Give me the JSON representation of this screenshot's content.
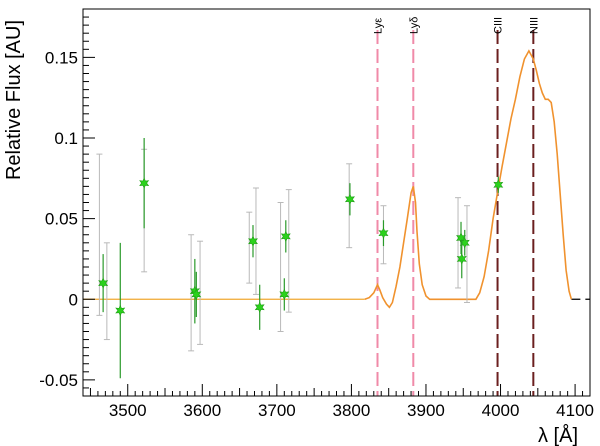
{
  "chart_data": {
    "type": "scatter",
    "title": "",
    "xlabel": "λ [Å]",
    "ylabel": "Relative Flux [AU]",
    "xlim": [
      3440,
      4120
    ],
    "ylim": [
      -0.06,
      0.18
    ],
    "grid": false,
    "xticks": [
      {
        "value": 3500,
        "label": "3500"
      },
      {
        "value": 3600,
        "label": "3600"
      },
      {
        "value": 3700,
        "label": "3700"
      },
      {
        "value": 3800,
        "label": "3800"
      },
      {
        "value": 3900,
        "label": "3900"
      },
      {
        "value": 4000,
        "label": "4000"
      },
      {
        "value": 4100,
        "label": "4100"
      }
    ],
    "yticks": [
      {
        "value": -0.05,
        "label": "-0.05"
      },
      {
        "value": 0,
        "label": "0"
      },
      {
        "value": 0.05,
        "label": "0.05"
      },
      {
        "value": 0.1,
        "label": "0.1"
      },
      {
        "value": 0.15,
        "label": "0.15"
      }
    ],
    "zero_line_color": "#f0a830",
    "series": [
      {
        "kind": "model_curve",
        "color": "#f0922e",
        "points": [
          [
            3818,
            0
          ],
          [
            3824,
            0.001
          ],
          [
            3830,
            0.004
          ],
          [
            3835,
            0.009
          ],
          [
            3838,
            0.006
          ],
          [
            3842,
            0.001
          ],
          [
            3847,
            -0.003
          ],
          [
            3851,
            -0.005
          ],
          [
            3855,
            -0.002
          ],
          [
            3860,
            0.008
          ],
          [
            3865,
            0.02
          ],
          [
            3870,
            0.035
          ],
          [
            3875,
            0.05
          ],
          [
            3880,
            0.066
          ],
          [
            3883,
            0.07
          ],
          [
            3886,
            0.06
          ],
          [
            3888,
            0.042
          ],
          [
            3891,
            0.022
          ],
          [
            3895,
            0.009
          ],
          [
            3900,
            0.002
          ],
          [
            3905,
            0
          ],
          [
            3967,
            0
          ],
          [
            3972,
            0.004
          ],
          [
            3978,
            0.014
          ],
          [
            3984,
            0.03
          ],
          [
            3990,
            0.05
          ],
          [
            3996,
            0.066
          ],
          [
            4002,
            0.082
          ],
          [
            4008,
            0.097
          ],
          [
            4014,
            0.112
          ],
          [
            4020,
            0.124
          ],
          [
            4026,
            0.138
          ],
          [
            4032,
            0.149
          ],
          [
            4038,
            0.154
          ],
          [
            4044,
            0.149
          ],
          [
            4048,
            0.142
          ],
          [
            4052,
            0.134
          ],
          [
            4056,
            0.128
          ],
          [
            4060,
            0.124
          ],
          [
            4064,
            0.124
          ],
          [
            4068,
            0.122
          ],
          [
            4072,
            0.11
          ],
          [
            4076,
            0.09
          ],
          [
            4080,
            0.065
          ],
          [
            4084,
            0.04
          ],
          [
            4088,
            0.018
          ],
          [
            4092,
            0.005
          ],
          [
            4095,
            0
          ]
        ]
      },
      {
        "kind": "data_errorbars",
        "color": "#2bd21c",
        "errorbar_color": "#2a9a2a",
        "points": [
          {
            "x": 3467,
            "y": 0.01,
            "yerr": 0.018
          },
          {
            "x": 3490,
            "y": -0.007,
            "yerr": 0.042
          },
          {
            "x": 3522,
            "y": 0.072,
            "yerr": 0.028
          },
          {
            "x": 3590,
            "y": 0.005,
            "yerr": 0.02
          },
          {
            "x": 3592,
            "y": 0.003,
            "yerr": 0.014
          },
          {
            "x": 3668,
            "y": 0.036,
            "yerr": 0.01
          },
          {
            "x": 3677,
            "y": -0.005,
            "yerr": 0.014
          },
          {
            "x": 3710,
            "y": 0.003,
            "yerr": 0.01
          },
          {
            "x": 3712,
            "y": 0.039,
            "yerr": 0.01
          },
          {
            "x": 3798,
            "y": 0.062,
            "yerr": 0.01
          },
          {
            "x": 3843,
            "y": 0.041,
            "yerr": 0.008
          },
          {
            "x": 3947,
            "y": 0.038,
            "yerr": 0.01
          },
          {
            "x": 3952,
            "y": 0.035,
            "yerr": 0.008
          },
          {
            "x": 3948,
            "y": 0.025,
            "yerr": 0.012
          },
          {
            "x": 3997,
            "y": 0.071,
            "yerr": 0.005
          }
        ]
      },
      {
        "kind": "gray_errorbars",
        "color": "#b9b9b9",
        "points": [
          {
            "x": 3462,
            "y": 0.04,
            "yerr": 0.05
          },
          {
            "x": 3472,
            "y": 0.005,
            "yerr": 0.03
          },
          {
            "x": 3522,
            "y": 0.055,
            "yerr": 0.038
          },
          {
            "x": 3585,
            "y": 0.004,
            "yerr": 0.036
          },
          {
            "x": 3597,
            "y": 0.004,
            "yerr": 0.032
          },
          {
            "x": 3663,
            "y": 0.032,
            "yerr": 0.022
          },
          {
            "x": 3672,
            "y": 0.036,
            "yerr": 0.033
          },
          {
            "x": 3705,
            "y": 0.02,
            "yerr": 0.04
          },
          {
            "x": 3716,
            "y": 0.03,
            "yerr": 0.038
          },
          {
            "x": 3797,
            "y": 0.058,
            "yerr": 0.026
          },
          {
            "x": 3843,
            "y": 0.04,
            "yerr": 0.018
          },
          {
            "x": 3943,
            "y": 0.035,
            "yerr": 0.028
          },
          {
            "x": 3955,
            "y": 0.028,
            "yerr": 0.03
          }
        ]
      }
    ],
    "lines": [
      {
        "name": "Lyε",
        "x": 3835,
        "color": "#f08aa8"
      },
      {
        "name": "Lyδ",
        "x": 3883,
        "color": "#f08aa8"
      },
      {
        "name": "CIII",
        "x": 3996,
        "color": "#6b1f1f"
      },
      {
        "name": "NIII",
        "x": 4044,
        "color": "#6b1f1f"
      }
    ]
  }
}
